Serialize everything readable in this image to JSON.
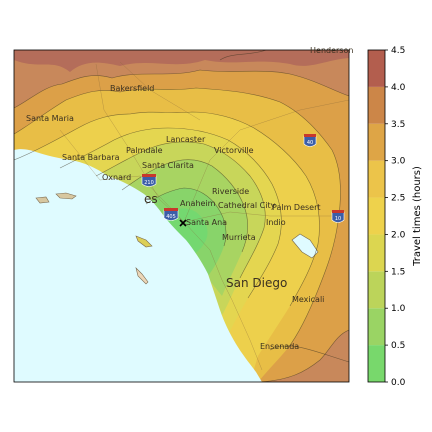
{
  "map": {
    "places": [
      {
        "id": "bakersfield",
        "label": "Bakersfield"
      },
      {
        "id": "santa-maria",
        "label": "Santa Maria"
      },
      {
        "id": "lancaster",
        "label": "Lancaster"
      },
      {
        "id": "palmdale",
        "label": "Palmdale"
      },
      {
        "id": "victorville",
        "label": "Victorville"
      },
      {
        "id": "santa-barbara",
        "label": "Santa Barbara"
      },
      {
        "id": "santa-clarita",
        "label": "Santa Clarita"
      },
      {
        "id": "oxnard",
        "label": "Oxnard"
      },
      {
        "id": "riverside",
        "label": "Riverside"
      },
      {
        "id": "anaheim",
        "label": "Anaheim"
      },
      {
        "id": "cathedral-city",
        "label": "Cathedral City"
      },
      {
        "id": "palm-desert",
        "label": "Palm Desert"
      },
      {
        "id": "indio",
        "label": "Indio"
      },
      {
        "id": "santa-ana",
        "label": "Santa Ana"
      },
      {
        "id": "murrieta",
        "label": "Murrieta"
      },
      {
        "id": "san-diego",
        "label": "San Diego"
      },
      {
        "id": "mexicali",
        "label": "Mexicali"
      },
      {
        "id": "ensenada",
        "label": "Ensenada"
      },
      {
        "id": "los-angeles-partial",
        "label": "es"
      },
      {
        "id": "henderson-partial",
        "label": "Henderson"
      }
    ],
    "highways": [
      {
        "id": "hwy-40",
        "label": "40"
      },
      {
        "id": "hwy-10",
        "label": "10"
      },
      {
        "id": "hwy-405",
        "label": "405"
      },
      {
        "id": "hwy-210",
        "label": "210"
      }
    ],
    "origin_marker": "x-marker",
    "colors": {
      "ocean": "#dffbff",
      "land_base": "#d8c9a0"
    }
  },
  "colorbar": {
    "label": "Travel times (hours)",
    "ticks": [
      "0.0",
      "0.5",
      "1.0",
      "1.5",
      "2.0",
      "2.5",
      "3.0",
      "3.5",
      "4.0",
      "4.5"
    ],
    "levels": [
      {
        "range": [
          0.0,
          0.5
        ],
        "color": "#78d86c"
      },
      {
        "range": [
          0.5,
          1.0
        ],
        "color": "#9ad464"
      },
      {
        "range": [
          1.0,
          1.5
        ],
        "color": "#bcd45a"
      },
      {
        "range": [
          1.5,
          2.0
        ],
        "color": "#dcd650"
      },
      {
        "range": [
          2.0,
          2.5
        ],
        "color": "#eed24c"
      },
      {
        "range": [
          2.5,
          3.0
        ],
        "color": "#ecc44a"
      },
      {
        "range": [
          3.0,
          3.5
        ],
        "color": "#dea546"
      },
      {
        "range": [
          3.5,
          4.0
        ],
        "color": "#cc8648"
      },
      {
        "range": [
          4.0,
          4.5
        ],
        "color": "#b35e4e"
      }
    ]
  }
}
